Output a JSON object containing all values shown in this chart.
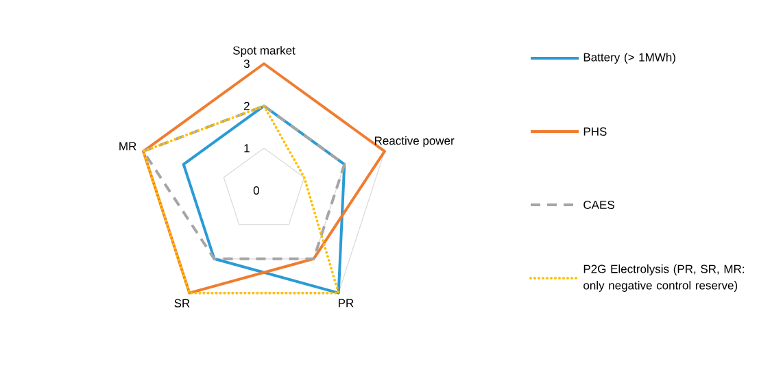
{
  "chart_data": {
    "type": "radar",
    "categories": [
      "Spot market",
      "Reactive power",
      "PR",
      "SR",
      "MR"
    ],
    "ylim": [
      0,
      3
    ],
    "yticks": [
      0,
      1,
      2,
      3
    ],
    "grid": true,
    "legend": "right",
    "series": [
      {
        "name": "Battery (> 1MWh)",
        "color": "#2a9bd6",
        "line_style": "solid",
        "values": [
          2,
          2,
          3,
          2,
          2
        ]
      },
      {
        "name": "PHS",
        "color": "#f07c30",
        "line_style": "solid",
        "values": [
          3,
          3,
          2,
          3,
          3
        ]
      },
      {
        "name": "CAES",
        "color": "#a5a5a5",
        "line_style": "dashed",
        "values": [
          2,
          2,
          2,
          2,
          3
        ]
      },
      {
        "name": "P2G Electrolysis (PR, SR, MR: only negative control reserve)",
        "color": "#ffc000",
        "line_style": "dotted",
        "values": [
          2,
          1,
          3,
          3,
          3
        ]
      }
    ]
  }
}
